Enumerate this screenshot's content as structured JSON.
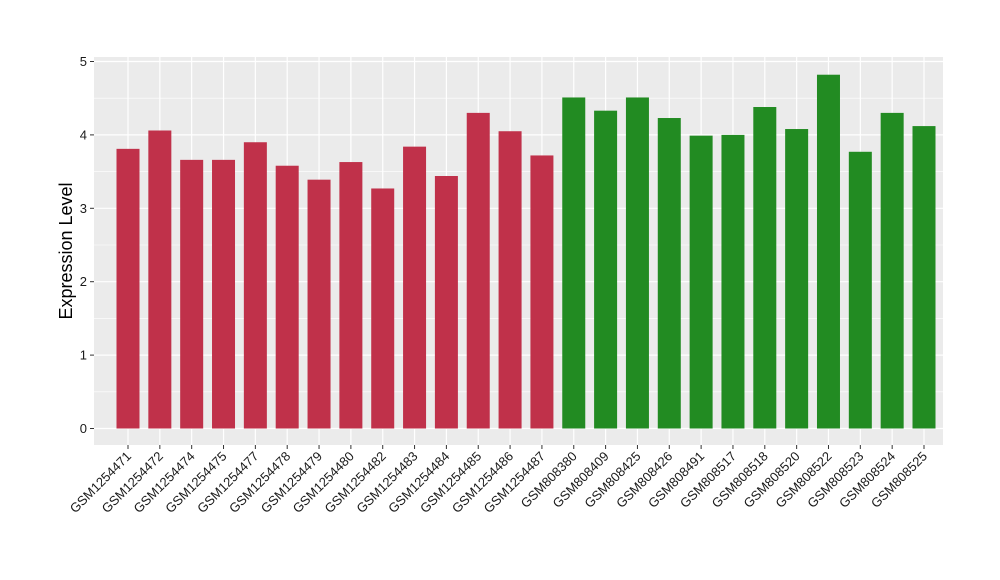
{
  "chart_data": {
    "type": "bar",
    "ylabel": "Expression Level",
    "xlabel": "",
    "ylim": [
      0,
      5
    ],
    "yticks": [
      0,
      1,
      2,
      3,
      4,
      5
    ],
    "grid": true,
    "background": "#EBEBEB",
    "colors": {
      "group_a": "#C0314A",
      "group_b": "#228B22"
    },
    "categories": [
      "GSM1254471",
      "GSM1254472",
      "GSM1254474",
      "GSM1254475",
      "GSM1254477",
      "GSM1254478",
      "GSM1254479",
      "GSM1254480",
      "GSM1254482",
      "GSM1254483",
      "GSM1254484",
      "GSM1254485",
      "GSM1254486",
      "GSM1254487",
      "GSM808380",
      "GSM808409",
      "GSM808425",
      "GSM808426",
      "GSM808491",
      "GSM808517",
      "GSM808518",
      "GSM808520",
      "GSM808522",
      "GSM808523",
      "GSM808524",
      "GSM808525"
    ],
    "values": [
      3.81,
      4.06,
      3.66,
      3.66,
      3.9,
      3.58,
      3.39,
      3.63,
      3.27,
      3.84,
      3.44,
      4.3,
      4.05,
      3.72,
      4.51,
      4.33,
      4.51,
      4.23,
      3.99,
      4.0,
      4.38,
      4.08,
      4.82,
      3.77,
      4.3,
      4.12
    ],
    "groups": [
      "group_a",
      "group_a",
      "group_a",
      "group_a",
      "group_a",
      "group_a",
      "group_a",
      "group_a",
      "group_a",
      "group_a",
      "group_a",
      "group_a",
      "group_a",
      "group_a",
      "group_b",
      "group_b",
      "group_b",
      "group_b",
      "group_b",
      "group_b",
      "group_b",
      "group_b",
      "group_b",
      "group_b",
      "group_b",
      "group_b"
    ]
  }
}
